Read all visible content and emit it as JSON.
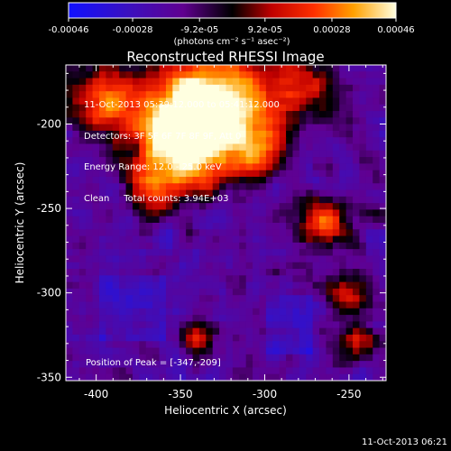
{
  "chart_data": {
    "type": "heatmap",
    "title": "Reconstructed RHESSI Image",
    "xlabel": "Heliocentric X (arcsec)",
    "ylabel": "Heliocentric Y (arcsec)",
    "xlim": [
      -418,
      -228
    ],
    "ylim": [
      -352,
      -165
    ],
    "x_ticks": [
      -400,
      -350,
      -300,
      -250
    ],
    "x_tick_labels": [
      "-400",
      "-350",
      "-300",
      "-250"
    ],
    "y_ticks": [
      -350,
      -300,
      -250,
      -200
    ],
    "y_tick_labels": [
      "-350",
      "-300",
      "-250",
      "-200"
    ],
    "colorbar": {
      "range": [
        -0.00046,
        0.00046
      ],
      "ticks": [
        -0.00046,
        -0.00028,
        -9.2e-05,
        9.2e-05,
        0.00028,
        0.00046
      ],
      "tick_labels": [
        "-0.00046",
        "-0.00028",
        "-9.2e-05",
        "9.2e-05",
        "0.00028",
        "0.00046"
      ],
      "unit_label": "(photons cm⁻² s⁻¹ asec⁻²)"
    },
    "peak": [
      -347,
      -209
    ]
  },
  "annotations": {
    "line1": "11-Oct-2013 05:39:12.000 to 05:41:12.000",
    "line2": "Detectors: 3F 5F 6F 7F 8F 9F, Att 0",
    "line3": "Energy Range: 12.0 - 25.0 keV",
    "line4": "Clean     Total counts: 3.94E+03",
    "peak_text": "Position of Peak = [-347,-209]"
  },
  "timestamp": "11-Oct-2013 06:21",
  "colors": {
    "background": "#000000",
    "axis": "#ffffff"
  }
}
